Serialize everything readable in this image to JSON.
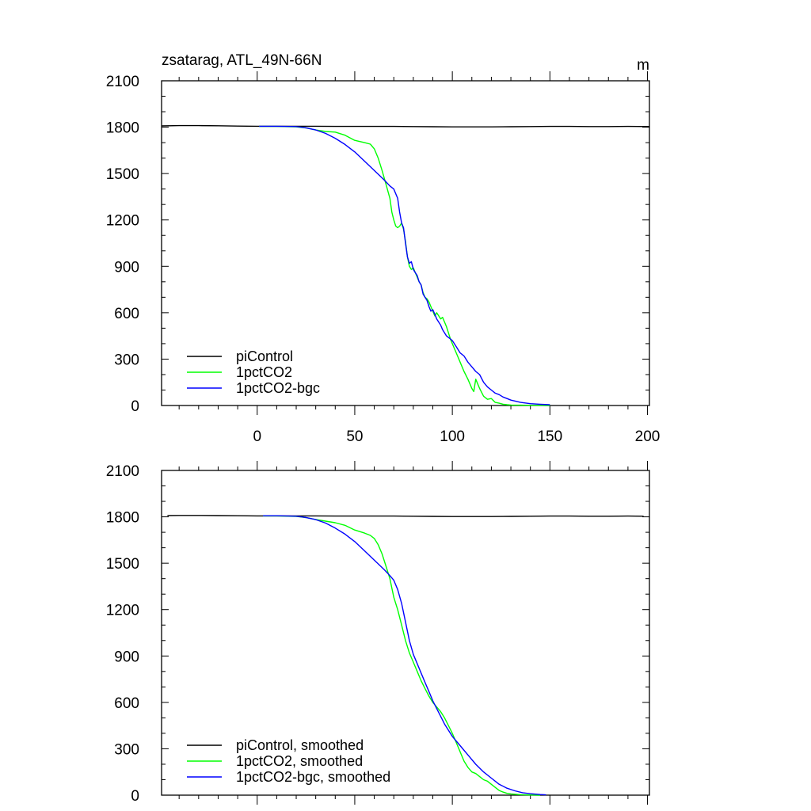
{
  "chart_data": [
    {
      "type": "line",
      "title": "zsatarag, ATL_49N-66N",
      "units": "m",
      "xlim": [
        -49,
        201
      ],
      "ylim": [
        0,
        2100
      ],
      "x_ticks": [
        0,
        50,
        100,
        150,
        200
      ],
      "y_ticks": [
        0,
        300,
        600,
        900,
        1200,
        1500,
        1800,
        2100
      ],
      "x_tick_labels": [
        "0",
        "50",
        "100",
        "150",
        "200"
      ],
      "y_tick_labels": [
        "0",
        "300",
        "600",
        "900",
        "1200",
        "1500",
        "1800",
        "2100"
      ],
      "legend_position": "bottom-left",
      "series": [
        {
          "name": "piControl",
          "color": "#000000",
          "x": [
            -49,
            -40,
            -30,
            -20,
            -10,
            0,
            10,
            20,
            30,
            40,
            50,
            60,
            70,
            80,
            90,
            100,
            110,
            120,
            130,
            140,
            150,
            160,
            170,
            180,
            190,
            201
          ],
          "y": [
            1808,
            1810,
            1810,
            1809,
            1807,
            1806,
            1806,
            1806,
            1806,
            1805,
            1805,
            1805,
            1805,
            1804,
            1803,
            1802,
            1802,
            1802,
            1803,
            1804,
            1805,
            1805,
            1804,
            1804,
            1805,
            1804
          ]
        },
        {
          "name": "1pctCO2",
          "color": "#00ff00",
          "x": [
            1,
            10,
            20,
            25,
            30,
            35,
            40,
            45,
            50,
            55,
            58,
            60,
            62,
            64,
            66,
            68,
            69,
            70,
            71,
            72,
            73,
            74,
            75,
            76,
            77,
            78,
            79,
            80,
            81,
            82,
            83,
            84,
            85,
            86,
            87,
            88,
            89,
            90,
            91,
            92,
            93,
            94,
            95,
            96,
            97,
            98,
            99,
            100,
            102,
            104,
            106,
            108,
            110,
            111,
            112,
            114,
            116,
            118,
            120,
            122,
            124,
            126,
            128,
            130,
            135,
            140,
            145,
            150
          ],
          "y": [
            1805,
            1805,
            1802,
            1795,
            1782,
            1772,
            1768,
            1748,
            1715,
            1700,
            1690,
            1660,
            1600,
            1520,
            1430,
            1340,
            1250,
            1200,
            1160,
            1150,
            1160,
            1180,
            1140,
            1060,
            960,
            900,
            880,
            890,
            860,
            830,
            800,
            780,
            730,
            700,
            690,
            670,
            640,
            610,
            580,
            600,
            580,
            560,
            570,
            540,
            510,
            470,
            430,
            400,
            340,
            280,
            220,
            170,
            110,
            90,
            170,
            110,
            60,
            40,
            45,
            20,
            15,
            8,
            5,
            3,
            2,
            1,
            1,
            0
          ]
        },
        {
          "name": "1pctCO2-bgc",
          "color": "#0000ff",
          "x": [
            1,
            10,
            20,
            25,
            30,
            35,
            40,
            45,
            50,
            55,
            60,
            65,
            68,
            70,
            72,
            73,
            74,
            75,
            76,
            77,
            78,
            79,
            80,
            81,
            82,
            83,
            84,
            85,
            86,
            87,
            88,
            89,
            90,
            91,
            92,
            93,
            94,
            95,
            96,
            97,
            98,
            99,
            100,
            102,
            104,
            106,
            108,
            110,
            112,
            114,
            116,
            118,
            120,
            122,
            124,
            126,
            128,
            130,
            135,
            140,
            145,
            150
          ],
          "y": [
            1806,
            1806,
            1804,
            1796,
            1782,
            1760,
            1728,
            1688,
            1640,
            1580,
            1520,
            1460,
            1420,
            1400,
            1340,
            1250,
            1180,
            1150,
            1050,
            960,
            920,
            930,
            880,
            860,
            840,
            800,
            780,
            720,
            700,
            680,
            640,
            610,
            620,
            590,
            560,
            540,
            520,
            490,
            470,
            450,
            440,
            430,
            420,
            380,
            340,
            320,
            280,
            250,
            220,
            200,
            150,
            120,
            100,
            80,
            70,
            55,
            45,
            35,
            20,
            12,
            8,
            5
          ]
        }
      ]
    },
    {
      "type": "line",
      "title": "",
      "xlim": [
        -49,
        201
      ],
      "ylim": [
        0,
        2100
      ],
      "x_ticks": [
        0,
        50,
        100,
        150,
        200
      ],
      "y_ticks": [
        0,
        300,
        600,
        900,
        1200,
        1500,
        1800,
        2100
      ],
      "y_tick_labels": [
        "0",
        "300",
        "600",
        "900",
        "1200",
        "1500",
        "1800",
        "2100"
      ],
      "legend_position": "bottom-left",
      "series": [
        {
          "name": "piControl, smoothed",
          "color": "#000000",
          "x": [
            -46,
            -40,
            -30,
            -20,
            -10,
            0,
            10,
            20,
            30,
            40,
            50,
            60,
            70,
            80,
            90,
            100,
            110,
            120,
            130,
            140,
            150,
            160,
            170,
            180,
            190,
            198
          ],
          "y": [
            1808,
            1809,
            1809,
            1808,
            1807,
            1806,
            1806,
            1806,
            1806,
            1805,
            1805,
            1805,
            1805,
            1804,
            1803,
            1802,
            1802,
            1802,
            1803,
            1804,
            1805,
            1805,
            1804,
            1804,
            1805,
            1804
          ]
        },
        {
          "name": "1pctCO2, smoothed",
          "color": "#00ff00",
          "x": [
            3,
            10,
            20,
            25,
            30,
            35,
            40,
            45,
            50,
            55,
            58,
            60,
            62,
            64,
            66,
            68,
            70,
            72,
            74,
            76,
            78,
            80,
            82,
            84,
            86,
            88,
            90,
            92,
            94,
            96,
            98,
            100,
            102,
            104,
            106,
            108,
            110,
            112,
            114,
            116,
            118,
            120,
            122,
            124,
            126,
            128,
            130,
            135,
            140,
            145
          ],
          "y": [
            1806,
            1806,
            1803,
            1795,
            1783,
            1772,
            1762,
            1745,
            1715,
            1695,
            1680,
            1660,
            1620,
            1560,
            1480,
            1400,
            1280,
            1200,
            1100,
            1000,
            920,
            860,
            800,
            740,
            690,
            640,
            600,
            570,
            540,
            500,
            450,
            400,
            340,
            280,
            220,
            180,
            150,
            140,
            120,
            100,
            90,
            70,
            50,
            30,
            20,
            12,
            8,
            3,
            1,
            0
          ]
        },
        {
          "name": "1pctCO2-bgc, smoothed",
          "color": "#0000ff",
          "x": [
            3,
            10,
            20,
            25,
            30,
            35,
            40,
            45,
            50,
            55,
            60,
            65,
            68,
            70,
            72,
            74,
            76,
            78,
            80,
            82,
            84,
            86,
            88,
            90,
            92,
            94,
            96,
            98,
            100,
            104,
            108,
            112,
            116,
            120,
            124,
            128,
            132,
            136,
            140,
            145,
            148
          ],
          "y": [
            1807,
            1807,
            1804,
            1796,
            1782,
            1760,
            1727,
            1688,
            1640,
            1580,
            1520,
            1460,
            1420,
            1390,
            1330,
            1240,
            1120,
            1000,
            910,
            850,
            790,
            730,
            670,
            610,
            560,
            510,
            460,
            420,
            380,
            320,
            260,
            200,
            150,
            110,
            70,
            45,
            28,
            16,
            9,
            4,
            2
          ]
        }
      ]
    }
  ]
}
